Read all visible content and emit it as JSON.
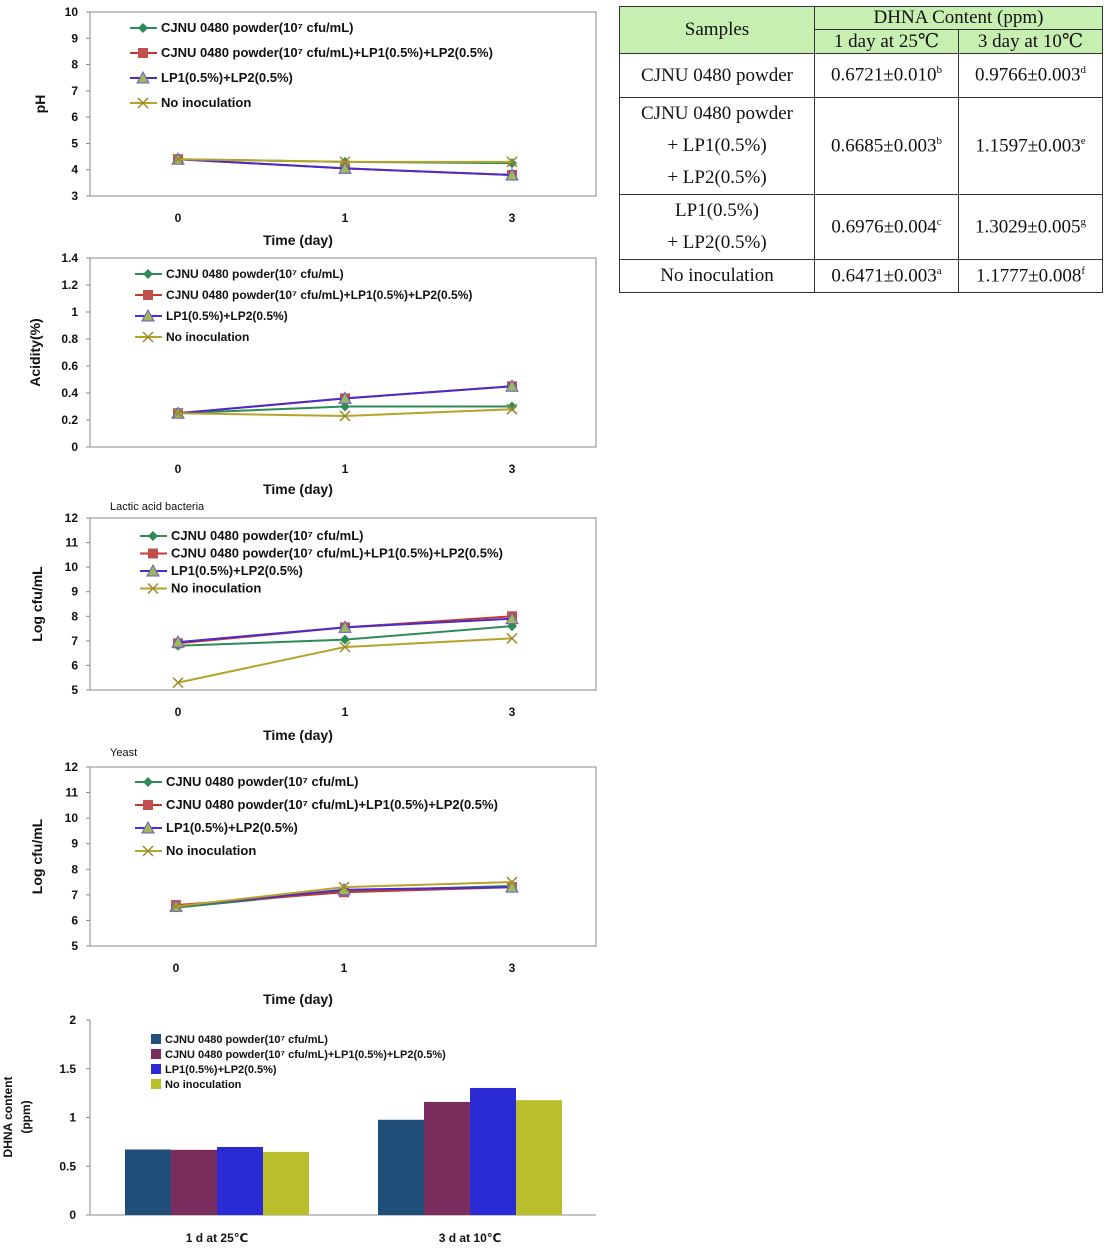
{
  "chart_data": [
    {
      "type": "line",
      "title": "",
      "xlabel": "Time (day)",
      "ylabel": "pH",
      "categories": [
        "0",
        "1",
        "3"
      ],
      "ylim": [
        3,
        10
      ],
      "yticks": [
        "3",
        "4",
        "5",
        "6",
        "7",
        "8",
        "9",
        "10"
      ],
      "series": [
        {
          "name": "CJNU 0480 powder(10⁷ cfu/mL)",
          "values": [
            4.4,
            4.3,
            4.25
          ]
        },
        {
          "name": "CJNU 0480 powder(10⁷ cfu/mL)+LP1(0.5%)+LP2(0.5%)",
          "values": [
            4.4,
            4.05,
            3.8
          ]
        },
        {
          "name": "LP1(0.5%)+LP2(0.5%)",
          "values": [
            4.4,
            4.05,
            3.8
          ]
        },
        {
          "name": "No inoculation",
          "values": [
            4.4,
            4.3,
            4.3
          ]
        }
      ]
    },
    {
      "type": "line",
      "title": "",
      "xlabel": "Time (day)",
      "ylabel": "Acidity(%)",
      "categories": [
        "0",
        "1",
        "3"
      ],
      "ylim": [
        0,
        1.4
      ],
      "yticks": [
        "0",
        "0.2",
        "0.4",
        "0.6",
        "0.8",
        "1",
        "1.2",
        "1.4"
      ],
      "series": [
        {
          "name": "CJNU 0480 powder(10⁷ cfu/mL)",
          "values": [
            0.25,
            0.3,
            0.3
          ]
        },
        {
          "name": "CJNU 0480 powder(10⁷ cfu/mL)+LP1(0.5%)+LP2(0.5%)",
          "values": [
            0.25,
            0.36,
            0.45
          ]
        },
        {
          "name": "LP1(0.5%)+LP2(0.5%)",
          "values": [
            0.25,
            0.36,
            0.45
          ]
        },
        {
          "name": "No inoculation",
          "values": [
            0.25,
            0.23,
            0.28
          ]
        }
      ]
    },
    {
      "type": "line",
      "title": "Lactic acid bacteria",
      "xlabel": "Time (day)",
      "ylabel": "Log cfu/mL",
      "categories": [
        "0",
        "1",
        "3"
      ],
      "ylim": [
        5,
        12
      ],
      "yticks": [
        "5",
        "6",
        "7",
        "8",
        "9",
        "10",
        "11",
        "12"
      ],
      "series": [
        {
          "name": "CJNU 0480 powder(10⁷ cfu/mL)",
          "values": [
            6.8,
            7.05,
            7.6
          ]
        },
        {
          "name": "CJNU 0480 powder(10⁷ cfu/mL)+LP1(0.5%)+LP2(0.5%)",
          "values": [
            6.9,
            7.55,
            8.0
          ]
        },
        {
          "name": "LP1(0.5%)+LP2(0.5%)",
          "values": [
            6.95,
            7.55,
            7.9
          ]
        },
        {
          "name": "No inoculation",
          "values": [
            5.3,
            6.75,
            7.1
          ]
        }
      ]
    },
    {
      "type": "line",
      "title": "Yeast",
      "xlabel": "Time (day)",
      "ylabel": "Log cfu/mL",
      "categories": [
        "0",
        "1",
        "3"
      ],
      "ylim": [
        5,
        12
      ],
      "yticks": [
        "5",
        "6",
        "7",
        "8",
        "9",
        "10",
        "11",
        "12"
      ],
      "series": [
        {
          "name": "CJNU 0480 powder(10⁷ cfu/mL)",
          "values": [
            6.5,
            7.15,
            7.35
          ]
        },
        {
          "name": "CJNU 0480 powder(10⁷ cfu/mL)+LP1(0.5%)+LP2(0.5%)",
          "values": [
            6.6,
            7.1,
            7.3
          ]
        },
        {
          "name": "LP1(0.5%)+LP2(0.5%)",
          "values": [
            6.55,
            7.2,
            7.3
          ]
        },
        {
          "name": "No inoculation",
          "values": [
            6.55,
            7.3,
            7.5
          ]
        }
      ]
    },
    {
      "type": "bar",
      "title": "",
      "xlabel": "",
      "ylabel": "DHNA content\n(ppm)",
      "categories": [
        "1 d at 25℃",
        "3 d at 10℃"
      ],
      "ylim": [
        0,
        2
      ],
      "yticks": [
        "0",
        "0.5",
        "1",
        "1.5",
        "2"
      ],
      "series": [
        {
          "name": "CJNU 0480 powder(10⁷ cfu/mL)",
          "values": [
            0.6721,
            0.9766
          ]
        },
        {
          "name": "CJNU 0480 powder(10⁷ cfu/mL)+LP1(0.5%)+LP2(0.5%)",
          "values": [
            0.6685,
            1.1597
          ]
        },
        {
          "name": "LP1(0.5%)+LP2(0.5%)",
          "values": [
            0.6976,
            1.3029
          ]
        },
        {
          "name": "No inoculation",
          "values": [
            0.6471,
            1.1777
          ]
        }
      ]
    },
    {
      "type": "table",
      "headers": {
        "samples": "Samples",
        "group": "DHNA Content (ppm)",
        "col1": "1 day at 25℃",
        "col2": "3 day at 10℃"
      },
      "rows": [
        {
          "sample": [
            "CJNU 0480 powder"
          ],
          "v1": "0.6721±0.010",
          "s1": "b",
          "v2": "0.9766±0.003",
          "s2": "d"
        },
        {
          "sample": [
            "CJNU 0480 powder",
            "+ LP1(0.5%)",
            "+ LP2(0.5%)"
          ],
          "v1": "0.6685±0.003",
          "s1": "b",
          "v2": "1.1597±0.003",
          "s2": "e"
        },
        {
          "sample": [
            "LP1(0.5%)",
            "+ LP2(0.5%)"
          ],
          "v1": "0.6976±0.004",
          "s1": "c",
          "v2": "1.3029±0.005",
          "s2": "g"
        },
        {
          "sample": [
            "No inoculation"
          ],
          "v1": "0.6471±0.003",
          "s1": "a",
          "v2": "1.1777±0.008",
          "s2": "f"
        }
      ]
    }
  ],
  "colors": {
    "line_series": [
      "#2e8b57",
      "#c0392b",
      "#4b2cc9",
      "#b5a32a"
    ],
    "bar_series": [
      "#1f4e79",
      "#7b2d5e",
      "#2b2bd6",
      "#b8bf2a"
    ],
    "table_header": "#c6efb1"
  }
}
